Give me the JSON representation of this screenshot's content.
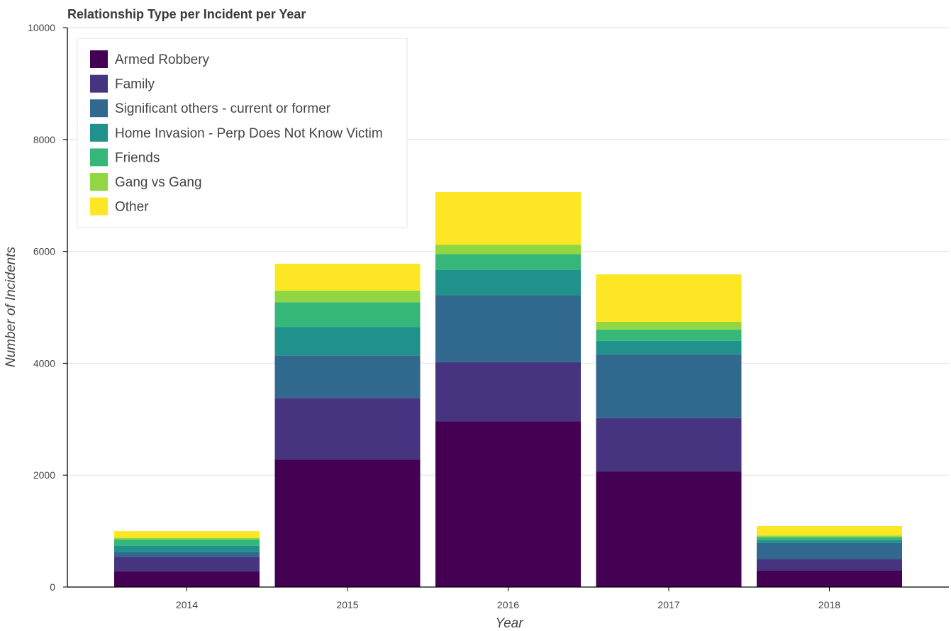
{
  "chart_data": {
    "type": "bar",
    "stacked": true,
    "title": "Relationship Type per Incident per Year",
    "xlabel": "Year",
    "ylabel": "Number of Incidents",
    "ylim": [
      0,
      10000
    ],
    "yticks": [
      "0",
      "2000",
      "4000",
      "6000",
      "8000",
      "10000"
    ],
    "grid": "horizontal",
    "legend_position": "top-left",
    "categories": [
      "2014",
      "2015",
      "2016",
      "2017",
      "2018"
    ],
    "series": [
      {
        "name": "Armed Robbery",
        "color": "#440154",
        "values": [
          280,
          2280,
          2960,
          2070,
          300
        ]
      },
      {
        "name": "Family",
        "color": "#463480",
        "values": [
          260,
          1100,
          1060,
          950,
          200
        ]
      },
      {
        "name": "Significant others - current or former",
        "color": "#31688e",
        "values": [
          90,
          760,
          1200,
          1140,
          290
        ]
      },
      {
        "name": "Home Invasion - Perp Does Not Know Victim",
        "color": "#21918c",
        "values": [
          110,
          510,
          450,
          240,
          50
        ]
      },
      {
        "name": "Friends",
        "color": "#35b779",
        "values": [
          110,
          440,
          280,
          200,
          50
        ]
      },
      {
        "name": "Gang vs Gang",
        "color": "#90d743",
        "values": [
          30,
          210,
          170,
          140,
          30
        ]
      },
      {
        "name": "Other",
        "color": "#fde725",
        "values": [
          120,
          480,
          940,
          850,
          170
        ]
      }
    ]
  }
}
